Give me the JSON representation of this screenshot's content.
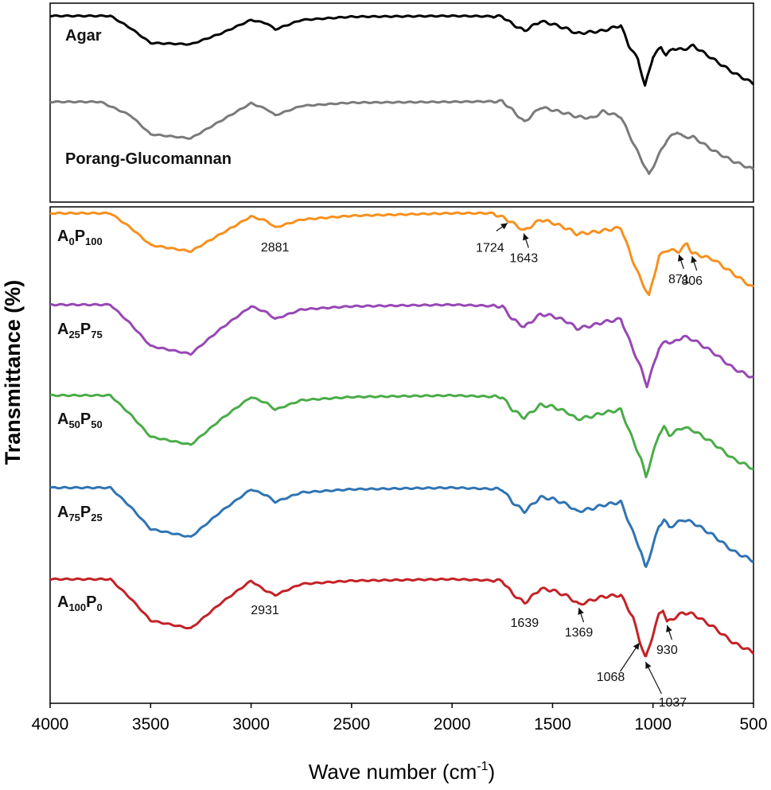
{
  "chart_data": {
    "type": "line",
    "title": "",
    "xlabel_main": "Wave number (cm",
    "xlabel_sup": "-1",
    "xlabel_end": ")",
    "ylabel": "Transmittance (%)",
    "xlim": [
      4000,
      500
    ],
    "xticks": [
      "4000",
      "3500",
      "3000",
      "2500",
      "2000",
      "1500",
      "1000",
      "500"
    ],
    "tick_values": [
      4000,
      3500,
      3000,
      2500,
      2000,
      1500,
      1000,
      500
    ],
    "panels": [
      "top",
      "bottom"
    ],
    "series": [
      {
        "name": "Agar",
        "label": "Agar",
        "panel": "top",
        "color": "#000000",
        "points": [
          [
            4000,
            0
          ],
          [
            3700,
            0
          ],
          [
            3600,
            -0.45
          ],
          [
            3500,
            -1.0
          ],
          [
            3300,
            -1.05
          ],
          [
            3150,
            -0.65
          ],
          [
            3000,
            -0.15
          ],
          [
            2920,
            -0.28
          ],
          [
            2880,
            -0.5
          ],
          [
            2750,
            -0.15
          ],
          [
            2500,
            -0.03
          ],
          [
            2000,
            0.0
          ],
          [
            1750,
            -0.02
          ],
          [
            1700,
            -0.3
          ],
          [
            1640,
            -0.55
          ],
          [
            1560,
            -0.2
          ],
          [
            1500,
            -0.3
          ],
          [
            1420,
            -0.5
          ],
          [
            1380,
            -0.65
          ],
          [
            1250,
            -0.55
          ],
          [
            1160,
            -0.35
          ],
          [
            1120,
            -1.1
          ],
          [
            1075,
            -1.6
          ],
          [
            1040,
            -2.6
          ],
          [
            1000,
            -1.5
          ],
          [
            960,
            -1.15
          ],
          [
            935,
            -1.45
          ],
          [
            900,
            -1.2
          ],
          [
            850,
            -1.25
          ],
          [
            800,
            -1.1
          ],
          [
            700,
            -1.6
          ],
          [
            600,
            -2.1
          ],
          [
            500,
            -2.5
          ]
        ]
      },
      {
        "name": "Porang-Glucomannan",
        "label": "Porang-Glucomannan",
        "panel": "top",
        "color": "#7a7a7a",
        "points": [
          [
            4000,
            0
          ],
          [
            3750,
            0
          ],
          [
            3600,
            -0.5
          ],
          [
            3500,
            -1.2
          ],
          [
            3300,
            -1.35
          ],
          [
            3150,
            -0.7
          ],
          [
            3000,
            -0.05
          ],
          [
            2920,
            -0.28
          ],
          [
            2880,
            -0.5
          ],
          [
            2750,
            -0.15
          ],
          [
            2500,
            -0.03
          ],
          [
            2000,
            0.0
          ],
          [
            1750,
            0.02
          ],
          [
            1700,
            -0.3
          ],
          [
            1640,
            -0.75
          ],
          [
            1560,
            -0.2
          ],
          [
            1500,
            -0.3
          ],
          [
            1420,
            -0.45
          ],
          [
            1380,
            -0.55
          ],
          [
            1300,
            -0.6
          ],
          [
            1250,
            -0.35
          ],
          [
            1160,
            -0.55
          ],
          [
            1100,
            -1.5
          ],
          [
            1060,
            -2.1
          ],
          [
            1020,
            -2.7
          ],
          [
            960,
            -1.8
          ],
          [
            930,
            -1.4
          ],
          [
            880,
            -1.1
          ],
          [
            850,
            -1.3
          ],
          [
            800,
            -1.3
          ],
          [
            700,
            -1.8
          ],
          [
            600,
            -2.2
          ],
          [
            500,
            -2.5
          ]
        ]
      },
      {
        "name": "A0P100",
        "label_main": "A",
        "label_sub1": "0",
        "label_mid": "P",
        "label_sub2": "100",
        "panel": "bottom",
        "color": "#f7901e",
        "points": [
          [
            4000,
            0
          ],
          [
            3700,
            0
          ],
          [
            3600,
            -0.45
          ],
          [
            3500,
            -1.0
          ],
          [
            3300,
            -1.2
          ],
          [
            3150,
            -0.65
          ],
          [
            3000,
            -0.1
          ],
          [
            2920,
            -0.25
          ],
          [
            2880,
            -0.45
          ],
          [
            2750,
            -0.2
          ],
          [
            2500,
            -0.08
          ],
          [
            2000,
            0
          ],
          [
            1800,
            0
          ],
          [
            1740,
            -0.15
          ],
          [
            1700,
            -0.3
          ],
          [
            1640,
            -0.55
          ],
          [
            1560,
            -0.2
          ],
          [
            1500,
            -0.3
          ],
          [
            1420,
            -0.5
          ],
          [
            1380,
            -0.65
          ],
          [
            1300,
            -0.6
          ],
          [
            1250,
            -0.55
          ],
          [
            1160,
            -0.45
          ],
          [
            1100,
            -1.5
          ],
          [
            1060,
            -2.1
          ],
          [
            1020,
            -2.6
          ],
          [
            970,
            -1.35
          ],
          [
            930,
            -1.15
          ],
          [
            871,
            -1.2
          ],
          [
            830,
            -0.95
          ],
          [
            806,
            -1.25
          ],
          [
            700,
            -1.45
          ],
          [
            600,
            -1.9
          ],
          [
            500,
            -2.35
          ]
        ]
      },
      {
        "name": "A25P75",
        "label_main": "A",
        "label_sub1": "25",
        "label_mid": "P",
        "label_sub2": "75",
        "panel": "bottom",
        "color": "#9747b5",
        "points": [
          [
            4000,
            0
          ],
          [
            3700,
            0
          ],
          [
            3600,
            -0.6
          ],
          [
            3500,
            -1.3
          ],
          [
            3300,
            -1.55
          ],
          [
            3150,
            -0.75
          ],
          [
            3000,
            -0.05
          ],
          [
            2920,
            -0.25
          ],
          [
            2880,
            -0.45
          ],
          [
            2750,
            -0.15
          ],
          [
            2500,
            -0.05
          ],
          [
            2000,
            0
          ],
          [
            1750,
            -0.05
          ],
          [
            1700,
            -0.45
          ],
          [
            1640,
            -0.7
          ],
          [
            1560,
            -0.3
          ],
          [
            1500,
            -0.35
          ],
          [
            1420,
            -0.55
          ],
          [
            1380,
            -0.75
          ],
          [
            1300,
            -0.65
          ],
          [
            1250,
            -0.55
          ],
          [
            1160,
            -0.45
          ],
          [
            1100,
            -1.4
          ],
          [
            1060,
            -2.0
          ],
          [
            1030,
            -2.55
          ],
          [
            970,
            -1.35
          ],
          [
            935,
            -1.15
          ],
          [
            900,
            -1.2
          ],
          [
            850,
            -1.0
          ],
          [
            800,
            -1.1
          ],
          [
            700,
            -1.5
          ],
          [
            600,
            -2.0
          ],
          [
            500,
            -2.3
          ]
        ]
      },
      {
        "name": "A50P50",
        "label_main": "A",
        "label_sub1": "50",
        "label_mid": "P",
        "label_sub2": "50",
        "panel": "bottom",
        "color": "#4aac48",
        "points": [
          [
            4000,
            0
          ],
          [
            3700,
            0
          ],
          [
            3600,
            -0.6
          ],
          [
            3500,
            -1.3
          ],
          [
            3300,
            -1.55
          ],
          [
            3150,
            -0.75
          ],
          [
            3000,
            -0.05
          ],
          [
            2920,
            -0.25
          ],
          [
            2880,
            -0.45
          ],
          [
            2750,
            -0.15
          ],
          [
            2500,
            -0.05
          ],
          [
            2000,
            0
          ],
          [
            1750,
            -0.05
          ],
          [
            1700,
            -0.45
          ],
          [
            1640,
            -0.7
          ],
          [
            1560,
            -0.3
          ],
          [
            1500,
            -0.35
          ],
          [
            1420,
            -0.55
          ],
          [
            1380,
            -0.75
          ],
          [
            1300,
            -0.65
          ],
          [
            1250,
            -0.55
          ],
          [
            1160,
            -0.45
          ],
          [
            1100,
            -1.4
          ],
          [
            1060,
            -2.0
          ],
          [
            1035,
            -2.55
          ],
          [
            970,
            -1.2
          ],
          [
            945,
            -1.0
          ],
          [
            920,
            -1.25
          ],
          [
            850,
            -1.0
          ],
          [
            800,
            -1.1
          ],
          [
            700,
            -1.5
          ],
          [
            600,
            -2.0
          ],
          [
            500,
            -2.3
          ]
        ]
      },
      {
        "name": "A75P25",
        "label_main": "A",
        "label_sub1": "75",
        "label_mid": "P",
        "label_sub2": "25",
        "panel": "bottom",
        "color": "#2f74b3",
        "points": [
          [
            4000,
            0
          ],
          [
            3700,
            0
          ],
          [
            3600,
            -0.6
          ],
          [
            3500,
            -1.3
          ],
          [
            3300,
            -1.55
          ],
          [
            3150,
            -0.75
          ],
          [
            3000,
            -0.05
          ],
          [
            2920,
            -0.25
          ],
          [
            2880,
            -0.45
          ],
          [
            2750,
            -0.15
          ],
          [
            2500,
            -0.05
          ],
          [
            2000,
            0
          ],
          [
            1750,
            -0.05
          ],
          [
            1700,
            -0.45
          ],
          [
            1640,
            -0.75
          ],
          [
            1560,
            -0.3
          ],
          [
            1500,
            -0.35
          ],
          [
            1420,
            -0.55
          ],
          [
            1380,
            -0.75
          ],
          [
            1300,
            -0.65
          ],
          [
            1250,
            -0.55
          ],
          [
            1160,
            -0.45
          ],
          [
            1100,
            -1.4
          ],
          [
            1060,
            -2.0
          ],
          [
            1037,
            -2.55
          ],
          [
            970,
            -1.2
          ],
          [
            945,
            -1.0
          ],
          [
            920,
            -1.25
          ],
          [
            850,
            -1.0
          ],
          [
            800,
            -1.1
          ],
          [
            700,
            -1.5
          ],
          [
            600,
            -2.0
          ],
          [
            500,
            -2.3
          ]
        ]
      },
      {
        "name": "A100P0",
        "label_main": "A",
        "label_sub1": "100",
        "label_mid": "P",
        "label_sub2": "0",
        "panel": "bottom",
        "color": "#c42127",
        "points": [
          [
            4000,
            0
          ],
          [
            3700,
            0
          ],
          [
            3600,
            -0.6
          ],
          [
            3500,
            -1.3
          ],
          [
            3300,
            -1.55
          ],
          [
            3150,
            -0.75
          ],
          [
            3000,
            -0.05
          ],
          [
            2931,
            -0.35
          ],
          [
            2880,
            -0.5
          ],
          [
            2750,
            -0.15
          ],
          [
            2500,
            -0.05
          ],
          [
            2000,
            0
          ],
          [
            1750,
            -0.05
          ],
          [
            1700,
            -0.45
          ],
          [
            1639,
            -0.75
          ],
          [
            1560,
            -0.3
          ],
          [
            1500,
            -0.35
          ],
          [
            1420,
            -0.55
          ],
          [
            1369,
            -0.8
          ],
          [
            1300,
            -0.65
          ],
          [
            1250,
            -0.55
          ],
          [
            1160,
            -0.5
          ],
          [
            1100,
            -1.2
          ],
          [
            1068,
            -1.9
          ],
          [
            1037,
            -2.5
          ],
          [
            970,
            -1.1
          ],
          [
            950,
            -0.95
          ],
          [
            930,
            -1.35
          ],
          [
            850,
            -1.05
          ],
          [
            800,
            -1.1
          ],
          [
            700,
            -1.5
          ],
          [
            600,
            -2.0
          ],
          [
            500,
            -2.3
          ]
        ]
      }
    ],
    "annotations": [
      {
        "text": "2881",
        "series": "A0P100",
        "x": 2881,
        "arrow": false
      },
      {
        "text": "1724",
        "series": "A0P100",
        "x": 1724,
        "arrow": true,
        "side": "left"
      },
      {
        "text": "1643",
        "series": "A0P100",
        "x": 1643,
        "arrow": true,
        "side": "below"
      },
      {
        "text": "871",
        "series": "A0P100",
        "x": 871,
        "arrow": true,
        "side": "below"
      },
      {
        "text": "806",
        "series": "A0P100",
        "x": 806,
        "arrow": true,
        "side": "below"
      },
      {
        "text": "2931",
        "series": "A100P0",
        "x": 2931,
        "arrow": false
      },
      {
        "text": "1639",
        "series": "A100P0",
        "x": 1639,
        "arrow": false
      },
      {
        "text": "1369",
        "series": "A100P0",
        "x": 1369,
        "arrow": true,
        "side": "below"
      },
      {
        "text": "1068",
        "series": "A100P0",
        "x": 1068,
        "arrow": true,
        "side": "below-left"
      },
      {
        "text": "1037",
        "series": "A100P0",
        "x": 1037,
        "arrow": true,
        "side": "below-right"
      },
      {
        "text": "930",
        "series": "A100P0",
        "x": 930,
        "arrow": true,
        "side": "below"
      }
    ]
  }
}
